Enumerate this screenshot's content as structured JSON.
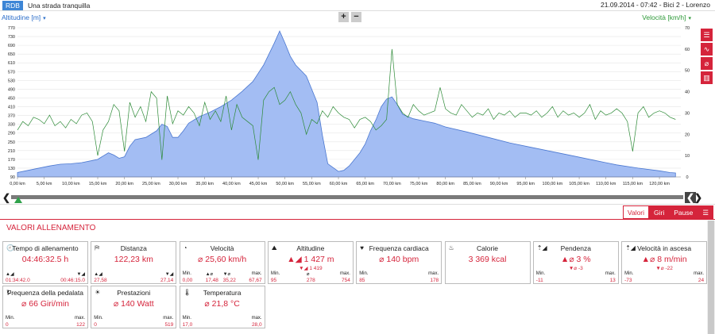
{
  "app": {
    "badge": "RDB",
    "ride_title": "Una strada tranquilla",
    "ride_info": "21.09.2014  -  07:42  -  Bici 2  -  Lorenzo"
  },
  "chart_toolbar": {
    "left_axis_label": "Altitudine [m]",
    "right_axis_label": "Velocità [km/h]",
    "caret": "▾",
    "zoom_in": "+",
    "zoom_out": "−"
  },
  "side_tools": [
    "list-icon",
    "line-chart-icon",
    "no-entry-icon",
    "bar-chart-icon"
  ],
  "colors": {
    "altitude_fill": "#a3bdf3",
    "altitude_line": "#4a77d0",
    "speed": "#2c8a36",
    "accent": "#d5243b"
  },
  "chart_data": {
    "type": "area",
    "xlabel": "",
    "ylabel": "Altitudine [m]",
    "y2label": "Velocità [km/h]",
    "xlim": [
      0,
      124
    ],
    "ylim": [
      90,
      770
    ],
    "y2lim": [
      0,
      70
    ],
    "x_ticks": [
      0,
      5,
      10,
      15,
      20,
      25,
      30,
      35,
      40,
      45,
      50,
      55,
      60,
      65,
      70,
      75,
      80,
      85,
      90,
      95,
      100,
      105,
      110,
      115,
      120
    ],
    "x_tick_labels": [
      "0,00 km",
      "5,00 km",
      "10,00 km",
      "15,00 km",
      "20,00 km",
      "25,00 km",
      "30,00 km",
      "35,00 km",
      "40,00 km",
      "45,00 km",
      "50,00 km",
      "55,00 km",
      "60,00 km",
      "65,00 km",
      "70,00 km",
      "75,00 km",
      "80,00 km",
      "85,00 km",
      "90,00 km",
      "95,00 km",
      "100,00 km",
      "105,00 km",
      "110,00 km",
      "115,00 km",
      "120,00 km"
    ],
    "y_ticks": [
      90,
      130,
      170,
      210,
      250,
      290,
      330,
      370,
      410,
      450,
      490,
      530,
      570,
      610,
      650,
      690,
      730,
      770
    ],
    "y2_ticks": [
      0,
      10,
      20,
      30,
      40,
      50,
      60,
      70
    ],
    "grid": true,
    "series": [
      {
        "name": "Altitudine [m]",
        "type": "area",
        "x": [
          0,
          3,
          6,
          8,
          10,
          12,
          14,
          15,
          16,
          17,
          18,
          19,
          20,
          21,
          22,
          24,
          26,
          27,
          28,
          29,
          30,
          31,
          32,
          34,
          36,
          38,
          40,
          42,
          44,
          46,
          48,
          49,
          50,
          51,
          52,
          54,
          56,
          57,
          58,
          60,
          61,
          62,
          64,
          65,
          66,
          67,
          68,
          69,
          70,
          71,
          72,
          74,
          76,
          78,
          80,
          84,
          88,
          92,
          96,
          100,
          104,
          108,
          112,
          116,
          120,
          122,
          123
        ],
        "y": [
          110,
          125,
          140,
          148,
          150,
          155,
          165,
          170,
          185,
          200,
          190,
          175,
          182,
          230,
          260,
          270,
          300,
          330,
          320,
          270,
          270,
          300,
          335,
          365,
          385,
          410,
          440,
          480,
          525,
          600,
          700,
          755,
          700,
          640,
          600,
          550,
          430,
          280,
          150,
          115,
          120,
          140,
          200,
          240,
          300,
          350,
          410,
          445,
          455,
          420,
          375,
          355,
          345,
          335,
          318,
          295,
          270,
          245,
          225,
          205,
          185,
          165,
          145,
          130,
          118,
          110,
          108
        ]
      },
      {
        "name": "Velocità [km/h]",
        "type": "line",
        "x": [
          0,
          1,
          2,
          3,
          4,
          5,
          6,
          7,
          8,
          9,
          10,
          11,
          12,
          13,
          14,
          15,
          16,
          17,
          18,
          19,
          20,
          21,
          22,
          23,
          24,
          25,
          26,
          27,
          28,
          29,
          30,
          31,
          32,
          33,
          34,
          35,
          36,
          37,
          38,
          39,
          40,
          41,
          42,
          43,
          44,
          45,
          46,
          47,
          48,
          49,
          50,
          51,
          52,
          53,
          54,
          55,
          56,
          57,
          58,
          59,
          60,
          61,
          62,
          63,
          64,
          65,
          66,
          67,
          68,
          69,
          70,
          71,
          72,
          73,
          74,
          75,
          76,
          77,
          78,
          79,
          80,
          81,
          82,
          83,
          84,
          85,
          86,
          87,
          88,
          89,
          90,
          91,
          92,
          93,
          94,
          95,
          96,
          97,
          98,
          99,
          100,
          101,
          102,
          103,
          104,
          105,
          106,
          107,
          108,
          109,
          110,
          111,
          112,
          113,
          114,
          115,
          116,
          117,
          118,
          119,
          120,
          121,
          122,
          123
        ],
        "y": [
          22,
          26,
          24,
          28,
          27,
          25,
          29,
          24,
          26,
          23,
          27,
          25,
          29,
          30,
          26,
          10,
          22,
          26,
          34,
          31,
          12,
          35,
          28,
          33,
          26,
          40,
          37,
          8,
          38,
          25,
          31,
          29,
          33,
          30,
          24,
          35,
          27,
          31,
          26,
          38,
          22,
          34,
          28,
          26,
          24,
          8,
          36,
          40,
          42,
          34,
          36,
          40,
          34,
          30,
          20,
          27,
          25,
          31,
          28,
          33,
          30,
          28,
          27,
          23,
          27,
          28,
          26,
          22,
          24,
          27,
          60,
          34,
          30,
          28,
          34,
          31,
          29,
          30,
          31,
          42,
          32,
          30,
          29,
          34,
          31,
          28,
          30,
          29,
          32,
          27,
          30,
          29,
          31,
          28,
          30,
          30,
          29,
          31,
          28,
          30,
          33,
          28,
          31,
          29,
          30,
          28,
          30,
          34,
          27,
          31,
          29,
          30,
          32,
          30,
          26,
          12,
          30,
          33,
          28,
          30,
          31,
          30,
          28,
          27
        ]
      }
    ]
  },
  "scroller": {
    "left_arrow": "❮",
    "right_arrow": "❯"
  },
  "tabs": [
    {
      "label": "Valori",
      "active": true
    },
    {
      "label": "Giri",
      "active": false
    },
    {
      "label": "Pause",
      "active": false
    }
  ],
  "section_title": "VALORI ALLENAMENTO",
  "cards": [
    {
      "name": "tempo",
      "icon": "clock-icon",
      "glyph": "🕘",
      "title": "Tempo di allenamento",
      "value": "04:46:32.5 h",
      "stats": [
        {
          "label": "▲◢",
          "value": "01:34:42.0",
          "pos": "l"
        },
        {
          "label": "▼◢",
          "value": "00:46:15.0",
          "pos": "r"
        }
      ]
    },
    {
      "name": "distanza",
      "icon": "signpost-icon",
      "glyph": "⛿",
      "title": "Distanza",
      "value": "122,23 km",
      "stats": [
        {
          "label": "▲◢",
          "value": "27,58",
          "pos": "l"
        },
        {
          "label": "▼◢",
          "value": "27,14",
          "pos": "r"
        }
      ]
    },
    {
      "name": "velocita",
      "icon": "speedometer-icon",
      "glyph": "◔",
      "title": "Velocità",
      "value": "⌀ 25,60 km/h",
      "stats": [
        {
          "label": "Min.",
          "value": "0,00",
          "pos": "l"
        },
        {
          "label": "▲⌀",
          "value": "17,48",
          "pos": "c1"
        },
        {
          "label": "▼⌀",
          "value": "35,22",
          "pos": "c2"
        },
        {
          "label": "max.",
          "value": "67,67",
          "pos": "r"
        }
      ]
    },
    {
      "name": "altitudine",
      "icon": "mountain-icon",
      "glyph": "⛰",
      "title": "Altitudine",
      "value": "▲◢ 1 427 m",
      "sub": "▼◢ 1 419",
      "stats": [
        {
          "label": "Min.",
          "value": "95",
          "pos": "l"
        },
        {
          "label": "⌀",
          "value": "278",
          "pos": "c"
        },
        {
          "label": "max.",
          "value": "754",
          "pos": "r"
        }
      ]
    },
    {
      "name": "frequenza-cardiaca",
      "icon": "heart-icon",
      "glyph": "♥",
      "title": "Frequenza cardiaca",
      "value": "⌀ 140 bpm",
      "stats": [
        {
          "label": "Min.",
          "value": "85",
          "pos": "l"
        },
        {
          "label": "max.",
          "value": "178",
          "pos": "r"
        }
      ]
    },
    {
      "name": "calorie",
      "icon": "flame-icon",
      "glyph": "♨",
      "title": "Calorie",
      "value": "3 369 kcal",
      "stats": []
    },
    {
      "name": "pendenza",
      "icon": "slope-icon",
      "glyph": "⇡◢",
      "title": "Pendenza",
      "value": "▲⌀ 3 %",
      "sub": "▼⌀ -3",
      "stats": [
        {
          "label": "Min.",
          "value": "-11",
          "pos": "l"
        },
        {
          "label": "max.",
          "value": "13",
          "pos": "r"
        }
      ]
    },
    {
      "name": "velocita-ascesa",
      "icon": "ascent-rate-icon",
      "glyph": "⇡◢",
      "title": "Velocità in ascesa",
      "value": "▲⌀ 8 m/min",
      "sub": "▼⌀ -22",
      "stats": [
        {
          "label": "Min.",
          "value": "-73",
          "pos": "l"
        },
        {
          "label": "max.",
          "value": "24",
          "pos": "r"
        }
      ]
    },
    {
      "name": "pedalata",
      "icon": "cadence-icon",
      "glyph": "↻",
      "title": "Frequenza della pedalata",
      "value": "⌀ 66 Giri/min",
      "stats": [
        {
          "label": "Min.",
          "value": "0",
          "pos": "l"
        },
        {
          "label": "max.",
          "value": "122",
          "pos": "r"
        }
      ]
    },
    {
      "name": "prestazioni",
      "icon": "power-icon",
      "glyph": "☀",
      "title": "Prestazioni",
      "value": "⌀ 140 Watt",
      "stats": [
        {
          "label": "Min.",
          "value": "0",
          "pos": "l"
        },
        {
          "label": "max.",
          "value": "519",
          "pos": "r"
        }
      ]
    },
    {
      "name": "temperatura",
      "icon": "thermometer-icon",
      "glyph": "🌡",
      "title": "Temperatura",
      "value": "⌀ 21,8 °C",
      "stats": [
        {
          "label": "Min.",
          "value": "17,0",
          "pos": "l"
        },
        {
          "label": "max.",
          "value": "28,0",
          "pos": "r"
        }
      ]
    }
  ]
}
